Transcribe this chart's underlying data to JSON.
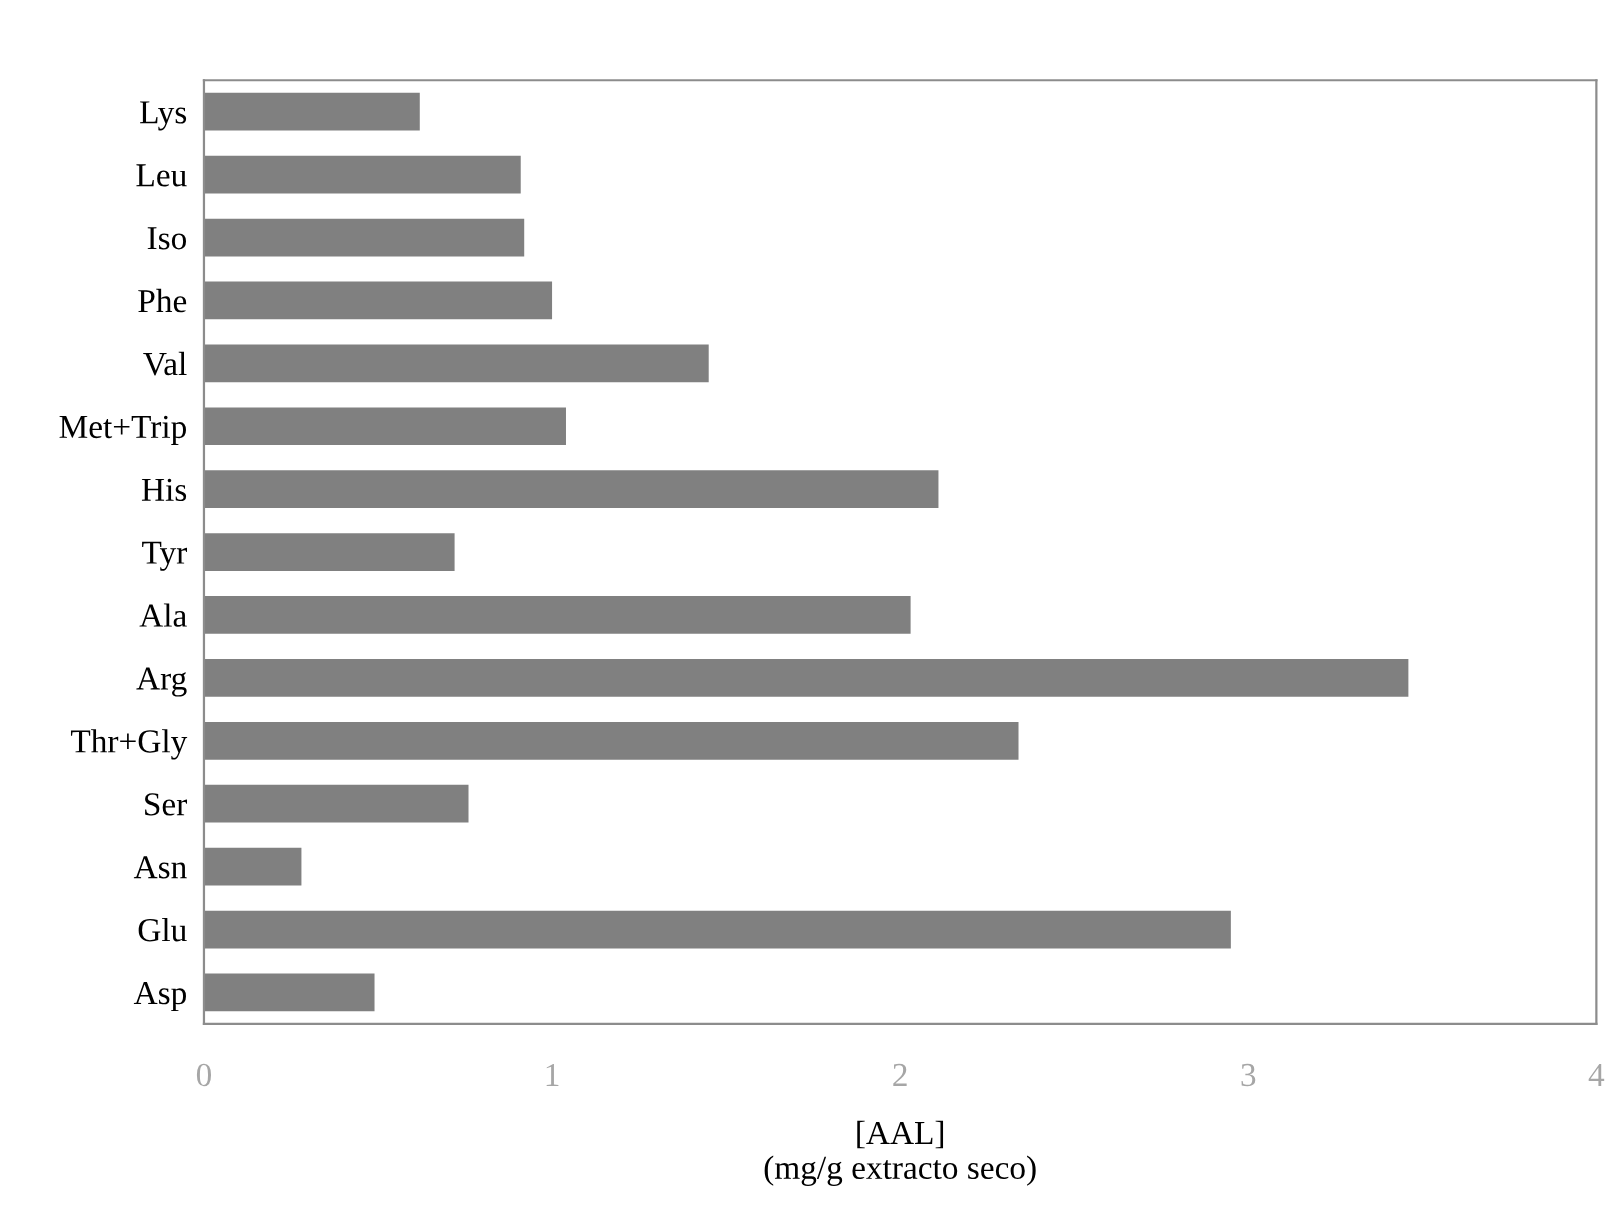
{
  "chart_data": {
    "type": "bar",
    "orientation": "horizontal",
    "xlabel": "[AAL]\n(mg/g extracto seco)",
    "categories": [
      "Lys",
      "Leu",
      "Iso",
      "Phe",
      "Val",
      "Met+Trip",
      "His",
      "Tyr",
      "Ala",
      "Arg",
      "Thr+Gly",
      "Ser",
      "Asn",
      "Glu",
      "Asp"
    ],
    "values": [
      0.62,
      0.91,
      0.92,
      1.0,
      1.45,
      1.04,
      2.11,
      0.72,
      2.03,
      3.46,
      2.34,
      0.76,
      0.28,
      2.95,
      0.49
    ],
    "color": "#808080",
    "xlim": [
      0,
      4
    ],
    "xticks": [
      0,
      1,
      2,
      3,
      4
    ],
    "grid": false,
    "legend": false
  }
}
